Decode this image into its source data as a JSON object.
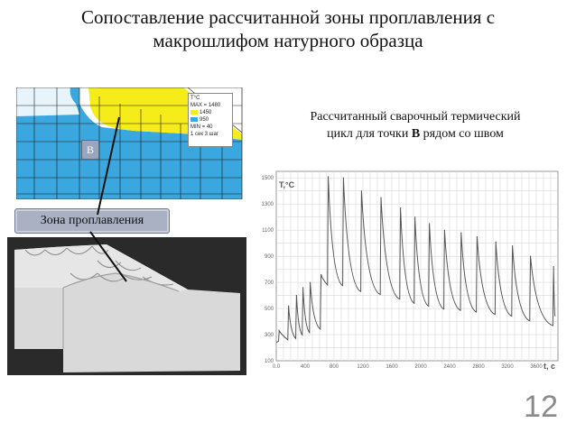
{
  "title_line1": "Сопоставление рассчитанной зоны проплавления с",
  "title_line2": "макрошлифом натурного образца",
  "fem": {
    "point_label": "B",
    "legend": {
      "line1": "T°C",
      "line2": "MAX = 1480",
      "line3": "1450",
      "line4": "950",
      "line5": "MIN = 40",
      "line6": "1 сек 3 шаг",
      "colors": {
        "melt": "#f5ec1a",
        "haz": "#3aa7df",
        "base": "#ffffff"
      }
    }
  },
  "zone_label": "Зона проплавления",
  "chart_caption_line1": "Рассчитанный сварочный термический",
  "chart_caption_line2_pre": "цикл для точки ",
  "chart_caption_line2_bold": "B",
  "chart_caption_line2_post": " рядом со швом",
  "chart_data": {
    "type": "line",
    "ylabel": "T,°C",
    "xlabel": "t, c",
    "xlim": [
      0,
      3900
    ],
    "ylim": [
      100,
      1550
    ],
    "yticks": [
      "1500",
      "1300",
      "1100",
      "900",
      "700",
      "500",
      "300",
      "100"
    ],
    "xticks": [
      "0.0",
      "400",
      "800",
      "1200",
      "1600",
      "2000",
      "2400",
      "2800",
      "3200",
      "3600"
    ],
    "grid": true,
    "series": [
      {
        "peaks": [
          [
            40,
            330
          ],
          [
            170,
            520
          ],
          [
            280,
            600
          ],
          [
            370,
            660
          ],
          [
            470,
            700
          ],
          [
            620,
            760
          ],
          [
            720,
            1510
          ],
          [
            930,
            1500
          ],
          [
            1180,
            1400
          ],
          [
            1450,
            1350
          ],
          [
            1720,
            1270
          ],
          [
            1920,
            1200
          ],
          [
            2120,
            1150
          ],
          [
            2330,
            1100
          ],
          [
            2560,
            1080
          ],
          [
            2780,
            1050
          ],
          [
            3040,
            1010
          ],
          [
            3270,
            980
          ],
          [
            3520,
            900
          ],
          [
            3840,
            820
          ]
        ],
        "end": [
          3870,
          440
        ]
      }
    ]
  },
  "page_number": "12"
}
